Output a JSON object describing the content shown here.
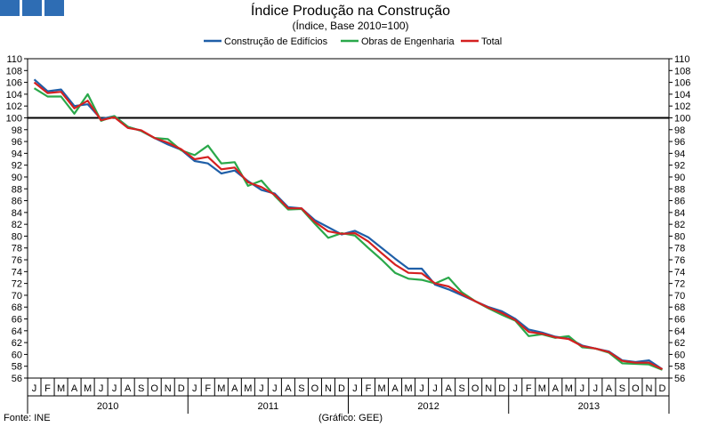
{
  "header": {
    "blocks": 3,
    "block_color": "#2e6db4"
  },
  "chart_data": {
    "type": "line",
    "title": "Índice Produção na Construção",
    "subtitle": "(Índice, Base 2010=100)",
    "source": "Fonte: INE",
    "credit": "(Gráfico: GEE)",
    "ylim": [
      56,
      110
    ],
    "yticks": [
      56,
      58,
      60,
      62,
      64,
      66,
      68,
      70,
      72,
      74,
      76,
      78,
      80,
      82,
      84,
      86,
      88,
      90,
      92,
      94,
      96,
      98,
      100,
      102,
      104,
      106,
      108,
      110
    ],
    "x_month_labels": [
      "J",
      "F",
      "M",
      "A",
      "M",
      "J",
      "J",
      "A",
      "S",
      "O",
      "N",
      "D",
      "J",
      "F",
      "M",
      "A",
      "M",
      "J",
      "J",
      "A",
      "S",
      "O",
      "N",
      "D",
      "J",
      "F",
      "M",
      "A",
      "M",
      "J",
      "J",
      "A",
      "S",
      "O",
      "N",
      "D",
      "J",
      "F",
      "M",
      "A",
      "M",
      "J",
      "J",
      "A",
      "S",
      "O",
      "N",
      "D"
    ],
    "x_year_labels": [
      "2010",
      "2011",
      "2012",
      "2013"
    ],
    "reference_line": 100,
    "legend": [
      "Construção de Edifícios",
      "Obras de Engenharia",
      "Total"
    ],
    "series": [
      {
        "name": "Construção de Edifícios",
        "color": "#1f5fa8",
        "values": [
          106.5,
          104.5,
          104.8,
          102.0,
          102.3,
          99.8,
          100.3,
          98.5,
          97.8,
          96.6,
          95.5,
          94.6,
          92.7,
          92.3,
          90.6,
          91.1,
          89.3,
          87.8,
          87.2,
          84.9,
          84.7,
          82.7,
          81.5,
          80.3,
          80.9,
          79.8,
          78.0,
          76.2,
          74.5,
          74.5,
          71.8,
          71.0,
          70.0,
          69.0,
          68.0,
          67.3,
          66.0,
          64.2,
          63.7,
          63.0,
          62.7,
          61.5,
          61.0,
          60.5,
          59.0,
          58.7,
          59.0,
          57.5
        ]
      },
      {
        "name": "Obras de Engenharia",
        "color": "#2aa84a",
        "values": [
          105.0,
          103.6,
          103.6,
          100.7,
          104.0,
          99.5,
          100.3,
          98.5,
          97.8,
          96.6,
          96.4,
          94.5,
          93.7,
          95.3,
          92.3,
          92.5,
          88.5,
          89.4,
          86.8,
          84.5,
          84.6,
          82.1,
          79.7,
          80.5,
          80.1,
          78.0,
          76.0,
          73.8,
          72.8,
          72.6,
          72.0,
          73.0,
          70.5,
          69.0,
          67.8,
          66.7,
          65.7,
          63.1,
          63.4,
          62.8,
          63.1,
          61.2,
          61.0,
          60.3,
          58.5,
          58.4,
          58.3,
          57.4
        ]
      },
      {
        "name": "Total",
        "color": "#d42020",
        "values": [
          106.0,
          104.2,
          104.4,
          101.6,
          102.9,
          99.6,
          100.1,
          98.3,
          97.9,
          96.6,
          95.8,
          94.7,
          93.0,
          93.4,
          91.3,
          91.6,
          89.1,
          88.3,
          87.0,
          84.7,
          84.7,
          82.4,
          80.8,
          80.4,
          80.5,
          79.1,
          77.1,
          75.2,
          73.8,
          73.7,
          72.0,
          71.5,
          70.2,
          69.0,
          67.9,
          67.0,
          65.8,
          63.8,
          63.5,
          62.9,
          62.6,
          61.4,
          61.0,
          60.4,
          58.9,
          58.6,
          58.6,
          57.5
        ]
      }
    ]
  }
}
